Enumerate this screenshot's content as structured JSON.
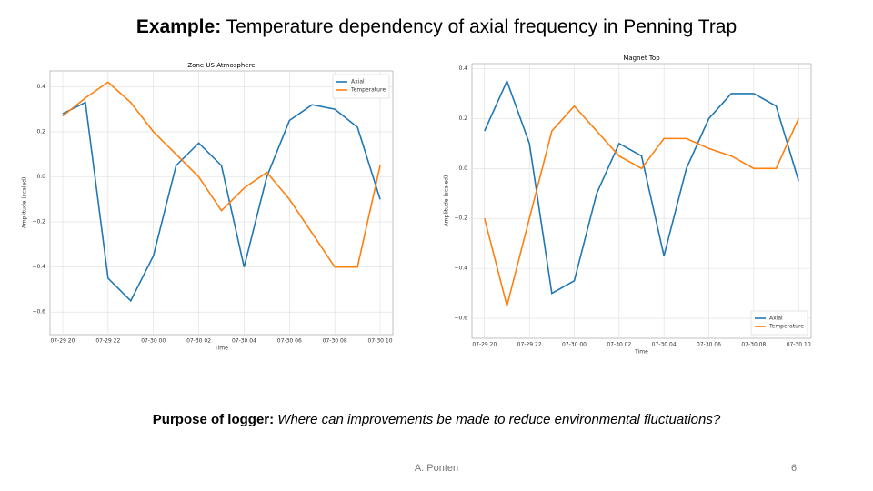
{
  "slide": {
    "title_bold": "Example:",
    "title_rest": " Temperature dependency of axial frequency in Penning Trap",
    "purpose_bold": "Purpose of logger:",
    "purpose_rest": " Where can improvements be made to reduce environmental fluctuations?",
    "author": "A. Ponten",
    "page": "6"
  },
  "chart_data": [
    {
      "type": "line",
      "title": "Zone US Atmosphere",
      "x_label": "Time",
      "y_label": "Amplitude (scaled)",
      "x": [
        "07-29 20",
        "07-29 21",
        "07-29 22",
        "07-29 23",
        "07-30 00",
        "07-30 01",
        "07-30 02",
        "07-30 03",
        "07-30 04",
        "07-30 05",
        "07-30 06",
        "07-30 07",
        "07-30 08",
        "07-30 09",
        "07-30 10"
      ],
      "series": [
        {
          "name": "Axial",
          "color": "#1f77b4",
          "values": [
            0.28,
            0.33,
            -0.45,
            -0.55,
            -0.35,
            0.05,
            0.15,
            0.05,
            -0.4,
            0.0,
            0.25,
            0.32,
            0.3,
            0.22,
            -0.1
          ]
        },
        {
          "name": "Temperature",
          "color": "#ff7f0e",
          "values": [
            0.27,
            0.35,
            0.42,
            0.33,
            0.2,
            0.1,
            0.0,
            -0.15,
            -0.05,
            0.02,
            -0.1,
            -0.25,
            -0.4,
            -0.4,
            0.05
          ]
        }
      ],
      "xticks": [
        "07-29 20",
        "07-29 22",
        "07-30 00",
        "07-30 02",
        "07-30 04",
        "07-30 06",
        "07-30 08",
        "07-30 10"
      ],
      "ylim": [
        -0.7,
        0.47
      ],
      "yticks": [
        {
          "value": -0.6,
          "label": "−0.6"
        },
        {
          "value": -0.4,
          "label": "−0.4"
        },
        {
          "value": -0.2,
          "label": "−0.2"
        },
        {
          "value": 0,
          "label": "0.0"
        },
        {
          "value": 0.2,
          "label": "0.2"
        },
        {
          "value": 0.4,
          "label": "0.4"
        }
      ],
      "grid": true,
      "legend": "upper right"
    },
    {
      "type": "line",
      "title": "Magnet Top",
      "x_label": "Time",
      "y_label": "Amplitude (scaled)",
      "x": [
        "07-29 20",
        "07-29 21",
        "07-29 22",
        "07-29 23",
        "07-30 00",
        "07-30 01",
        "07-30 02",
        "07-30 03",
        "07-30 04",
        "07-30 05",
        "07-30 06",
        "07-30 07",
        "07-30 08",
        "07-30 09",
        "07-30 10"
      ],
      "series": [
        {
          "name": "Axial",
          "color": "#1f77b4",
          "values": [
            0.15,
            0.35,
            0.1,
            -0.5,
            -0.45,
            -0.1,
            0.1,
            0.05,
            -0.35,
            0.0,
            0.2,
            0.3,
            0.3,
            0.25,
            -0.05
          ]
        },
        {
          "name": "Temperature",
          "color": "#ff7f0e",
          "values": [
            -0.2,
            -0.55,
            -0.2,
            0.15,
            0.25,
            0.15,
            0.05,
            0.0,
            0.12,
            0.12,
            0.08,
            0.05,
            0.0,
            0.0,
            0.2
          ]
        }
      ],
      "xticks": [
        "07-29 20",
        "07-29 22",
        "07-30 00",
        "07-30 02",
        "07-30 04",
        "07-30 06",
        "07-30 08",
        "07-30 10"
      ],
      "ylim": [
        -0.68,
        0.42
      ],
      "yticks": [
        {
          "value": -0.6,
          "label": "−0.6"
        },
        {
          "value": -0.4,
          "label": "−0.4"
        },
        {
          "value": -0.2,
          "label": "−0.2"
        },
        {
          "value": 0,
          "label": "0.0"
        },
        {
          "value": 0.2,
          "label": "0.2"
        },
        {
          "value": 0.4,
          "label": "0.4"
        }
      ],
      "grid": true,
      "legend": "lower right"
    }
  ]
}
